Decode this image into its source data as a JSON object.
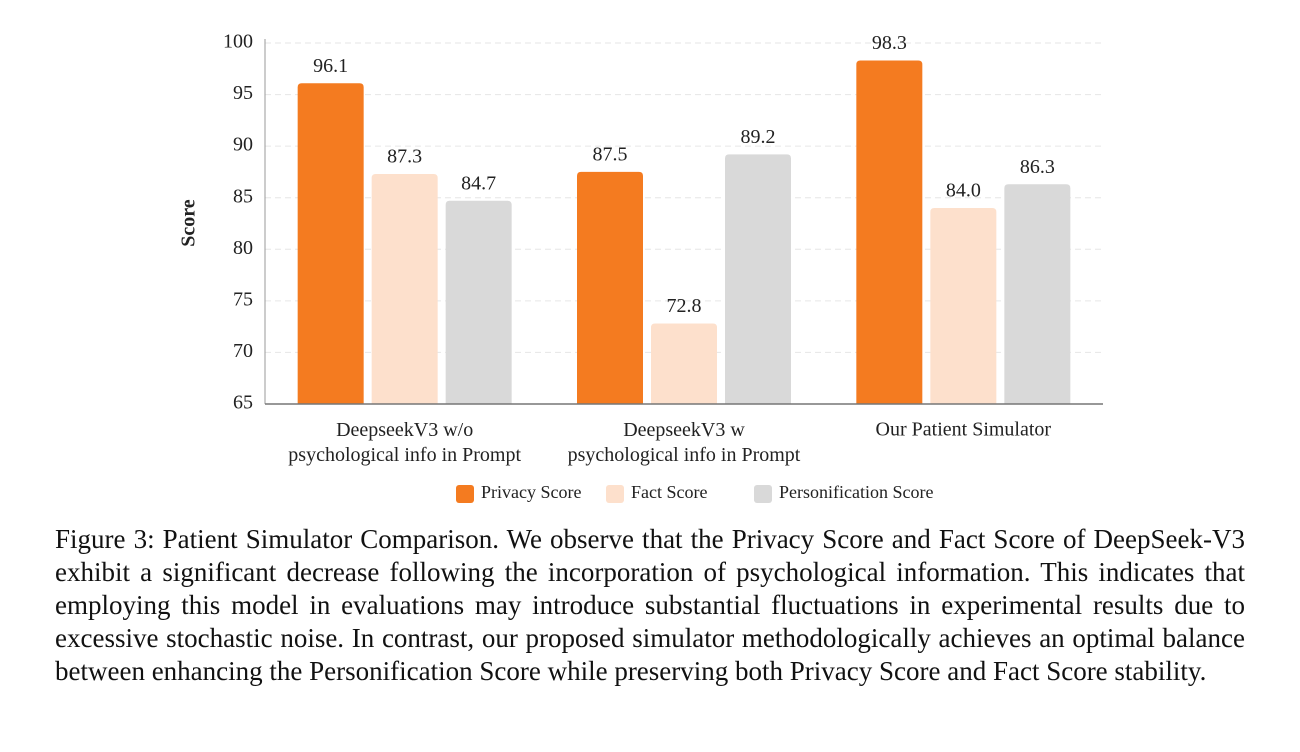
{
  "chart_data": {
    "type": "bar",
    "ylabel": "Score",
    "categories": [
      "DeepseekV3 w/o\npsychological info in Prompt",
      "DeepseekV3 w\npsychological info in Prompt",
      "Our Patient Simulator"
    ],
    "series": [
      {
        "name": "Privacy Score",
        "color": "#f47b20",
        "values": [
          96.1,
          87.5,
          98.3
        ],
        "value_labels": [
          "96.1",
          "87.5",
          "98.3"
        ]
      },
      {
        "name": "Fact Score",
        "color": "#fde0cc",
        "values": [
          87.3,
          72.8,
          84.0
        ],
        "value_labels": [
          "87.3",
          "72.8",
          "84.0"
        ]
      },
      {
        "name": "Personification Score",
        "color": "#d9d9d9",
        "values": [
          84.7,
          89.2,
          86.3
        ],
        "value_labels": [
          "84.7",
          "89.2",
          "86.3"
        ]
      }
    ],
    "ylim": [
      65,
      100
    ],
    "yticks": [
      65,
      70,
      75,
      80,
      85,
      90,
      95,
      100
    ],
    "grid": true,
    "legend": "bottom"
  },
  "caption": "Figure 3: Patient Simulator Comparison. We observe that the Privacy Score and Fact Score of DeepSeek-V3 exhibit a significant decrease following the incorporation of psychological information. This indicates that employing this model in evaluations may introduce substantial fluctuations in experimental results due to excessive stochastic noise. In contrast, our proposed simulator methodologically achieves an optimal balance between enhancing the Personification Score while preserving both Privacy Score and Fact Score stability."
}
